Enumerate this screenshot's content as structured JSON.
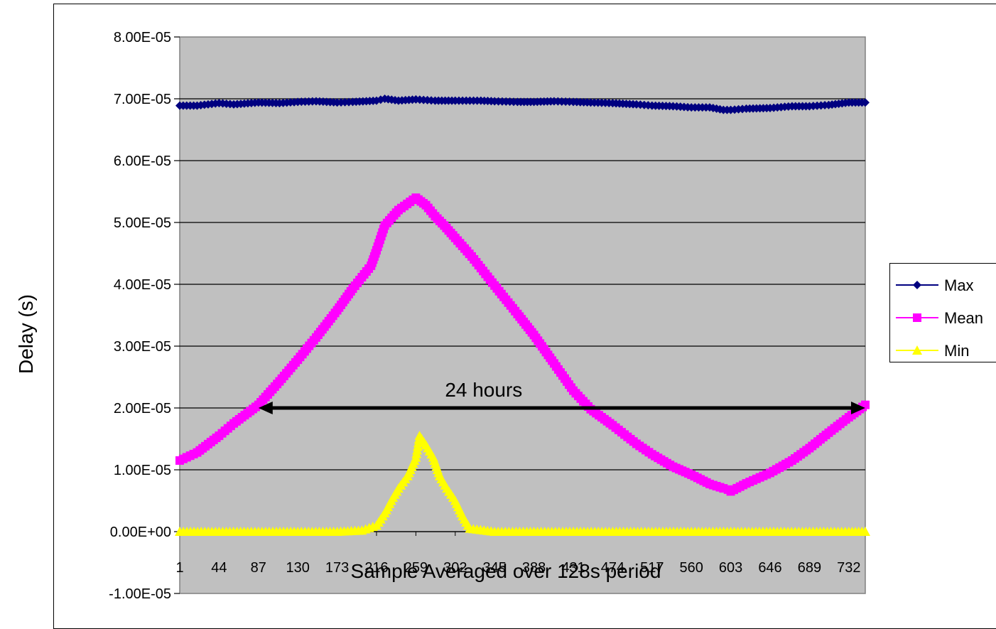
{
  "chart_data": {
    "type": "line",
    "xlabel": "Sample Averaged over 128s period",
    "ylabel": "Delay (s)",
    "ylim": [
      -1e-05,
      8e-05
    ],
    "xlim": [
      1,
      750
    ],
    "grid": "horizontal",
    "legend_position": "right",
    "y_ticks": [
      "8.00E-05",
      "7.00E-05",
      "6.00E-05",
      "5.00E-05",
      "4.00E-05",
      "3.00E-05",
      "2.00E-05",
      "1.00E-05",
      "0.00E+00",
      "-1.00E-05"
    ],
    "y_tick_values": [
      8e-05,
      7e-05,
      6e-05,
      5e-05,
      4e-05,
      3e-05,
      2e-05,
      1e-05,
      0,
      -1e-05
    ],
    "x_ticks": [
      "1",
      "44",
      "87",
      "130",
      "173",
      "216",
      "259",
      "302",
      "345",
      "388",
      "431",
      "474",
      "517",
      "560",
      "603",
      "646",
      "689",
      "732"
    ],
    "x_tick_values": [
      1,
      44,
      87,
      130,
      173,
      216,
      259,
      302,
      345,
      388,
      431,
      474,
      517,
      560,
      603,
      646,
      689,
      732
    ],
    "series": [
      {
        "name": "Max",
        "color": "#000080",
        "marker": "diamond",
        "x": [
          1,
          20,
          44,
          60,
          87,
          110,
          130,
          150,
          173,
          190,
          216,
          225,
          240,
          259,
          280,
          302,
          330,
          345,
          370,
          388,
          410,
          431,
          450,
          474,
          500,
          517,
          540,
          560,
          580,
          595,
          603,
          620,
          646,
          670,
          689,
          710,
          732,
          750
        ],
        "y": [
          6.89e-05,
          6.89e-05,
          6.93e-05,
          6.91e-05,
          6.94e-05,
          6.93e-05,
          6.95e-05,
          6.96e-05,
          6.94e-05,
          6.95e-05,
          6.97e-05,
          7e-05,
          6.97e-05,
          6.99e-05,
          6.97e-05,
          6.97e-05,
          6.97e-05,
          6.96e-05,
          6.95e-05,
          6.95e-05,
          6.96e-05,
          6.95e-05,
          6.94e-05,
          6.93e-05,
          6.91e-05,
          6.89e-05,
          6.88e-05,
          6.86e-05,
          6.86e-05,
          6.82e-05,
          6.82e-05,
          6.84e-05,
          6.85e-05,
          6.88e-05,
          6.88e-05,
          6.9e-05,
          6.94e-05,
          6.94e-05
        ]
      },
      {
        "name": "Mean",
        "color": "#ff00ff",
        "marker": "square",
        "x": [
          1,
          20,
          44,
          60,
          87,
          110,
          130,
          150,
          173,
          190,
          210,
          216,
          225,
          240,
          259,
          270,
          280,
          290,
          302,
          320,
          345,
          370,
          388,
          410,
          431,
          450,
          474,
          500,
          517,
          540,
          560,
          580,
          595,
          600,
          603,
          620,
          646,
          670,
          689,
          710,
          732,
          750
        ],
        "y": [
          1.15e-05,
          1.28e-05,
          1.55e-05,
          1.75e-05,
          2.05e-05,
          2.43e-05,
          2.78e-05,
          3.14e-05,
          3.58e-05,
          3.93e-05,
          4.3e-05,
          4.55e-05,
          4.95e-05,
          5.2e-05,
          5.4e-05,
          5.28e-05,
          5.1e-05,
          4.95e-05,
          4.75e-05,
          4.45e-05,
          3.98e-05,
          3.52e-05,
          3.18e-05,
          2.72e-05,
          2.28e-05,
          1.98e-05,
          1.72e-05,
          1.42e-05,
          1.25e-05,
          1.05e-05,
          9.2e-06,
          7.7e-06,
          7e-06,
          6.8e-06,
          6.5e-06,
          7.8e-06,
          9.5e-06,
          1.15e-05,
          1.35e-05,
          1.6e-05,
          1.85e-05,
          2.05e-05
        ]
      },
      {
        "name": "Min",
        "color": "#ffff00",
        "marker": "triangle",
        "x": [
          1,
          44,
          87,
          130,
          173,
          200,
          216,
          225,
          232,
          240,
          250,
          259,
          263,
          270,
          278,
          285,
          293,
          302,
          310,
          318,
          345,
          388,
          431,
          474,
          517,
          560,
          603,
          646,
          689,
          732,
          750
        ],
        "y": [
          0,
          0,
          0,
          0,
          0,
          2e-07,
          1e-06,
          3e-06,
          5e-06,
          7e-06,
          9e-06,
          1.2e-05,
          1.55e-05,
          1.4e-05,
          1.2e-05,
          9e-06,
          7e-06,
          5e-06,
          2.5e-06,
          5e-07,
          0,
          0,
          0,
          0,
          0,
          0,
          0,
          0,
          0,
          0,
          0
        ]
      }
    ],
    "annotations": [
      {
        "type": "double-arrow",
        "text": "24 hours",
        "x_start": 87,
        "x_end": 750,
        "y": 2e-05
      }
    ]
  }
}
